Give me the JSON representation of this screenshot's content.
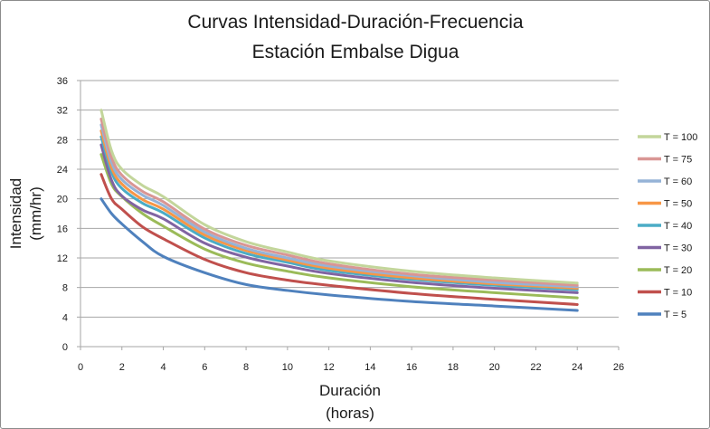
{
  "chart_data": {
    "type": "line",
    "title": [
      "Curvas Intensidad-Duración-Frecuencia",
      "Estación Embalse Digua"
    ],
    "xlabel": [
      "Duración",
      "(horas)"
    ],
    "ylabel": [
      "Intensidad",
      "(mm/hr)"
    ],
    "xlim": [
      0,
      26
    ],
    "ylim": [
      0,
      36
    ],
    "xticks": [
      0,
      2,
      4,
      6,
      8,
      10,
      12,
      14,
      16,
      18,
      20,
      22,
      24,
      26
    ],
    "yticks": [
      0,
      4,
      8,
      12,
      16,
      20,
      24,
      28,
      32,
      36
    ],
    "grid": "horizontal",
    "legend_position": "right",
    "x": [
      1,
      1.5,
      2,
      3,
      4,
      6,
      8,
      10,
      12,
      16,
      20,
      24
    ],
    "series": [
      {
        "name": "T = 100",
        "color": "#c3d69b",
        "values": [
          32.0,
          26.5,
          24.0,
          21.8,
          20.3,
          16.5,
          14.2,
          12.8,
          11.6,
          10.2,
          9.3,
          8.6
        ]
      },
      {
        "name": "T = 75",
        "color": "#d99694",
        "values": [
          30.8,
          25.6,
          23.2,
          21.0,
          19.6,
          15.9,
          13.7,
          12.4,
          11.2,
          9.8,
          9.0,
          8.3
        ]
      },
      {
        "name": "T = 60",
        "color": "#95b3d7",
        "values": [
          30.0,
          24.9,
          22.6,
          20.5,
          19.1,
          15.5,
          13.3,
          12.0,
          10.9,
          9.6,
          8.7,
          8.1
        ]
      },
      {
        "name": "T = 50",
        "color": "#f79646",
        "values": [
          29.2,
          24.2,
          22.0,
          19.9,
          18.6,
          15.1,
          13.0,
          11.7,
          10.6,
          9.3,
          8.5,
          7.9
        ]
      },
      {
        "name": "T = 40",
        "color": "#4bacc6",
        "values": [
          28.4,
          23.6,
          21.4,
          19.4,
          18.1,
          14.7,
          12.6,
          11.4,
          10.3,
          9.1,
          8.3,
          7.7
        ]
      },
      {
        "name": "T = 30",
        "color": "#8064a2",
        "values": [
          27.3,
          22.5,
          20.4,
          18.5,
          17.3,
          14.0,
          12.1,
          10.9,
          9.9,
          8.7,
          7.9,
          7.3
        ]
      },
      {
        "name": "T = 20",
        "color": "#9bbb59",
        "values": [
          26.0,
          22.0,
          20.3,
          18.0,
          16.3,
          13.2,
          11.3,
          10.2,
          9.3,
          8.1,
          7.3,
          6.6
        ]
      },
      {
        "name": "T = 10",
        "color": "#c0504d",
        "values": [
          23.3,
          20.0,
          18.6,
          16.2,
          14.6,
          11.8,
          10.0,
          9.0,
          8.3,
          7.2,
          6.4,
          5.7
        ]
      },
      {
        "name": "T = 5",
        "color": "#4f81bd",
        "values": [
          20.0,
          18.0,
          16.6,
          14.2,
          12.2,
          10.0,
          8.4,
          7.6,
          7.0,
          6.1,
          5.5,
          4.9
        ]
      }
    ]
  }
}
